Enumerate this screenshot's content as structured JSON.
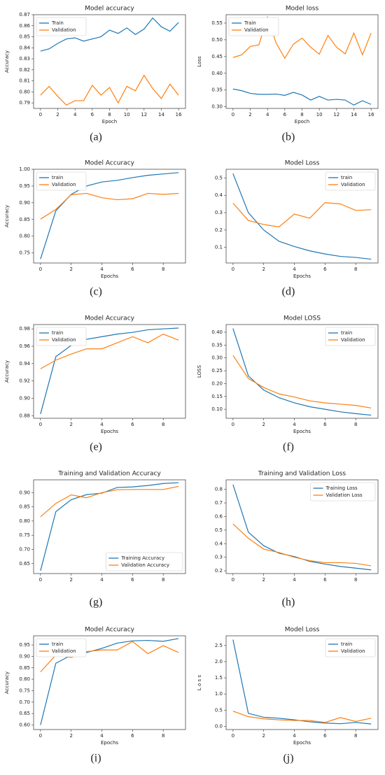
{
  "chart_data": [
    {
      "type": "line",
      "panel": "(a)",
      "title": "Model accuracy",
      "xlabel": "Epoch",
      "ylabel": "Accuracy",
      "legend": "upper left",
      "x": [
        0,
        1,
        2,
        3,
        4,
        5,
        6,
        7,
        8,
        9,
        10,
        11,
        12,
        13,
        14,
        15,
        16
      ],
      "xlim": [
        -0.8,
        16.8
      ],
      "xticks": [
        0,
        2,
        4,
        6,
        8,
        10,
        12,
        14,
        16
      ],
      "ylim": [
        0.785,
        0.87
      ],
      "yticks": [
        0.79,
        {
          "value": 0.8,
          "label": "0.80"
        },
        0.81,
        0.82,
        0.83,
        0.84,
        0.85,
        0.86,
        0.87
      ],
      "series": [
        {
          "name": "Train",
          "color": "#1f77b4",
          "values": [
            0.837,
            0.839,
            0.844,
            0.848,
            0.849,
            0.846,
            0.848,
            0.85,
            0.856,
            0.853,
            0.858,
            0.852,
            0.857,
            0.867,
            0.859,
            0.855,
            0.863
          ]
        },
        {
          "name": "Validation",
          "color": "#ff7f0e",
          "values": [
            0.797,
            0.805,
            0.796,
            0.788,
            0.792,
            0.792,
            0.806,
            0.797,
            0.804,
            0.79,
            0.805,
            0.801,
            0.815,
            0.803,
            0.794,
            0.807,
            0.797
          ]
        }
      ]
    },
    {
      "type": "line",
      "panel": "(b)",
      "title": "Model loss",
      "xlabel": "Epoch",
      "ylabel": "Loss",
      "legend": "upper left",
      "x": [
        0,
        1,
        2,
        3,
        4,
        5,
        6,
        7,
        8,
        9,
        10,
        11,
        12,
        13,
        14,
        15,
        16
      ],
      "xlim": [
        -0.8,
        16.8
      ],
      "xticks": [
        0,
        2,
        4,
        6,
        8,
        10,
        12,
        14,
        16
      ],
      "ylim": [
        0.295,
        0.575
      ],
      "yticks": [
        {
          "value": 0.3,
          "label": "0.30"
        },
        0.35,
        {
          "value": 0.4,
          "label": "0.40"
        },
        0.45,
        {
          "value": 0.5,
          "label": "0.50"
        },
        0.55
      ],
      "series": [
        {
          "name": "Train",
          "color": "#1f77b4",
          "values": [
            0.353,
            0.348,
            0.34,
            0.337,
            0.337,
            0.338,
            0.334,
            0.343,
            0.335,
            0.32,
            0.331,
            0.32,
            0.322,
            0.32,
            0.305,
            0.318,
            0.307
          ]
        },
        {
          "name": "Validation",
          "color": "#ff7f0e",
          "values": [
            0.447,
            0.455,
            0.48,
            0.485,
            0.568,
            0.49,
            0.445,
            0.487,
            0.505,
            0.478,
            0.457,
            0.513,
            0.478,
            0.458,
            0.52,
            0.455,
            0.52
          ]
        }
      ]
    },
    {
      "type": "line",
      "panel": "(c)",
      "title": "Model Accuracy",
      "xlabel": "Epochs",
      "ylabel": "Accuracy",
      "legend": "upper left",
      "x": [
        0,
        1,
        2,
        3,
        4,
        5,
        6,
        7,
        8,
        9
      ],
      "xlim": [
        -0.45,
        9.45
      ],
      "xticks": [
        0,
        2,
        4,
        6,
        8
      ],
      "ylim": [
        0.72,
        1.0
      ],
      "yticks": [
        0.75,
        {
          "value": 0.8,
          "label": "0.80"
        },
        0.85,
        {
          "value": 0.9,
          "label": "0.90"
        },
        0.95,
        {
          "value": 1,
          "label": "1.00"
        }
      ],
      "series": [
        {
          "name": "train",
          "color": "#1f77b4",
          "values": [
            0.732,
            0.876,
            0.925,
            0.95,
            0.962,
            0.967,
            0.975,
            0.982,
            0.986,
            0.99
          ]
        },
        {
          "name": "Validation",
          "color": "#ff7f0e",
          "values": [
            0.851,
            0.88,
            0.924,
            0.928,
            0.915,
            0.909,
            0.912,
            0.928,
            0.925,
            0.928
          ]
        }
      ]
    },
    {
      "type": "line",
      "panel": "(d)",
      "title": "Model Loss",
      "xlabel": "Epochs",
      "legend": "upper right",
      "x": [
        0,
        1,
        2,
        3,
        4,
        5,
        6,
        7,
        8,
        9
      ],
      "xlim": [
        -0.45,
        9.45
      ],
      "xticks": [
        0,
        2,
        4,
        6,
        8
      ],
      "ylim": [
        0.01,
        0.55
      ],
      "yticks": [
        0.1,
        0.2,
        0.3,
        0.4,
        0.5
      ],
      "series": [
        {
          "name": "train",
          "color": "#1f77b4",
          "values": [
            0.525,
            0.3,
            0.2,
            0.135,
            0.105,
            0.08,
            0.062,
            0.048,
            0.042,
            0.032
          ]
        },
        {
          "name": "Validation",
          "color": "#ff7f0e",
          "values": [
            0.355,
            0.255,
            0.232,
            0.218,
            0.292,
            0.268,
            0.358,
            0.35,
            0.313,
            0.317
          ]
        }
      ]
    },
    {
      "type": "line",
      "panel": "(e)",
      "title": "Model Accuracy",
      "xlabel": "Epochs",
      "ylabel": "Accuracy",
      "legend": "upper left",
      "x": [
        0,
        1,
        2,
        3,
        4,
        5,
        6,
        7,
        8,
        9
      ],
      "xlim": [
        -0.45,
        9.45
      ],
      "xticks": [
        0,
        2,
        4,
        6,
        8
      ],
      "ylim": [
        0.877,
        0.985
      ],
      "yticks": [
        0.88,
        {
          "value": 0.9,
          "label": "0.90"
        },
        0.92,
        0.94,
        0.96,
        0.98
      ],
      "series": [
        {
          "name": "train",
          "color": "#1f77b4",
          "values": [
            0.882,
            0.948,
            0.961,
            0.968,
            0.971,
            0.974,
            0.976,
            0.979,
            0.98,
            0.981
          ]
        },
        {
          "name": "Validation",
          "color": "#ff7f0e",
          "values": [
            0.934,
            0.944,
            0.951,
            0.957,
            0.957,
            0.964,
            0.971,
            0.964,
            0.974,
            0.967
          ]
        }
      ]
    },
    {
      "type": "line",
      "panel": "(f)",
      "title": "Model LOSS",
      "xlabel": "Epochs",
      "ylabel": "LOSS",
      "legend": "upper right",
      "x": [
        0,
        1,
        2,
        3,
        4,
        5,
        6,
        7,
        8,
        9
      ],
      "xlim": [
        -0.45,
        9.45
      ],
      "xticks": [
        0,
        2,
        4,
        6,
        8
      ],
      "ylim": [
        0.065,
        0.43
      ],
      "yticks": [
        {
          "value": 0.1,
          "label": "0.10"
        },
        0.15,
        {
          "value": 0.2,
          "label": "0.20"
        },
        0.25,
        {
          "value": 0.3,
          "label": "0.30"
        },
        0.35,
        {
          "value": 0.4,
          "label": "0.40"
        }
      ],
      "series": [
        {
          "name": "train",
          "color": "#1f77b4",
          "values": [
            0.415,
            0.23,
            0.175,
            0.145,
            0.125,
            0.11,
            0.1,
            0.09,
            0.083,
            0.077
          ]
        },
        {
          "name": "Validation",
          "color": "#ff7f0e",
          "values": [
            0.31,
            0.22,
            0.185,
            0.16,
            0.148,
            0.133,
            0.125,
            0.12,
            0.115,
            0.105
          ]
        }
      ]
    },
    {
      "type": "line",
      "panel": "(g)",
      "title": "Training and Validation Accuracy",
      "legend": "lower right",
      "x": [
        0,
        1,
        2,
        3,
        4,
        5,
        6,
        7,
        8,
        9
      ],
      "xlim": [
        -0.45,
        9.45
      ],
      "xticks": [
        0,
        2,
        4,
        6,
        8
      ],
      "ylim": [
        0.615,
        0.945
      ],
      "yticks": [
        0.65,
        {
          "value": 0.7,
          "label": "0.70"
        },
        0.75,
        {
          "value": 0.8,
          "label": "0.80"
        },
        0.85,
        {
          "value": 0.9,
          "label": "0.90"
        }
      ],
      "series": [
        {
          "name": "Training Accuracy",
          "color": "#1f77b4",
          "values": [
            0.625,
            0.833,
            0.875,
            0.893,
            0.898,
            0.918,
            0.92,
            0.925,
            0.932,
            0.935
          ]
        },
        {
          "name": "Validation Accuracy",
          "color": "#ff7f0e",
          "values": [
            0.815,
            0.862,
            0.892,
            0.882,
            0.9,
            0.91,
            0.911,
            0.911,
            0.911,
            0.922
          ]
        }
      ]
    },
    {
      "type": "line",
      "panel": "(h)",
      "title": "Training and Validation Loss",
      "legend": "upper right",
      "x": [
        0,
        1,
        2,
        3,
        4,
        5,
        6,
        7,
        8,
        9
      ],
      "xlim": [
        -0.45,
        9.45
      ],
      "xticks": [
        0,
        2,
        4,
        6,
        8
      ],
      "ylim": [
        0.18,
        0.87
      ],
      "yticks": [
        0.2,
        0.3,
        0.4,
        0.5,
        0.6,
        0.7,
        0.8
      ],
      "series": [
        {
          "name": "Training Loss",
          "color": "#1f77b4",
          "values": [
            0.835,
            0.485,
            0.385,
            0.33,
            0.305,
            0.27,
            0.25,
            0.232,
            0.22,
            0.207
          ]
        },
        {
          "name": "Validation Loss",
          "color": "#ff7f0e",
          "values": [
            0.545,
            0.44,
            0.36,
            0.335,
            0.3,
            0.275,
            0.26,
            0.26,
            0.255,
            0.237
          ]
        }
      ]
    },
    {
      "type": "line",
      "panel": "(i)",
      "title": "Model Accuracy",
      "xlabel": "Epochs",
      "ylabel": "Accuracy",
      "legend": "upper left",
      "x": [
        0,
        1,
        2,
        3,
        4,
        5,
        6,
        7,
        8,
        9
      ],
      "xlim": [
        -0.45,
        9.45
      ],
      "xticks": [
        0,
        2,
        4,
        6,
        8
      ],
      "ylim": [
        0.58,
        0.99
      ],
      "yticks": [
        {
          "value": 0.6,
          "label": "0.60"
        },
        0.65,
        {
          "value": 0.7,
          "label": "0.70"
        },
        0.75,
        {
          "value": 0.8,
          "label": "0.80"
        },
        0.85,
        {
          "value": 0.9,
          "label": "0.90"
        },
        0.95
      ],
      "series": [
        {
          "name": "train",
          "color": "#1f77b4",
          "values": [
            0.6,
            0.87,
            0.905,
            0.917,
            0.935,
            0.958,
            0.968,
            0.97,
            0.966,
            0.978
          ]
        },
        {
          "name": "Validation",
          "color": "#ff7f0e",
          "values": [
            0.832,
            0.906,
            0.895,
            0.921,
            0.928,
            0.928,
            0.965,
            0.912,
            0.947,
            0.917
          ]
        }
      ]
    },
    {
      "type": "line",
      "panel": "(j)",
      "title": "Model Loss",
      "xlabel": "Epochs",
      "ylabel": "L o s s",
      "legend": "upper right",
      "x": [
        0,
        1,
        2,
        3,
        4,
        5,
        6,
        7,
        8,
        9
      ],
      "xlim": [
        -0.45,
        9.45
      ],
      "xticks": [
        0,
        2,
        4,
        6,
        8
      ],
      "ylim": [
        -0.1,
        2.8
      ],
      "yticks": [
        {
          "value": 0,
          "label": "0.0"
        },
        0.5,
        {
          "value": 1,
          "label": "1.0"
        },
        1.5,
        {
          "value": 2,
          "label": "2.0"
        },
        2.5
      ],
      "series": [
        {
          "name": "train",
          "color": "#1f77b4",
          "values": [
            2.68,
            0.4,
            0.28,
            0.25,
            0.2,
            0.14,
            0.1,
            0.08,
            0.12,
            0.07
          ]
        },
        {
          "name": "Validation",
          "color": "#ff7f0e",
          "values": [
            0.47,
            0.3,
            0.23,
            0.2,
            0.18,
            0.18,
            0.12,
            0.27,
            0.15,
            0.25
          ]
        }
      ]
    }
  ]
}
